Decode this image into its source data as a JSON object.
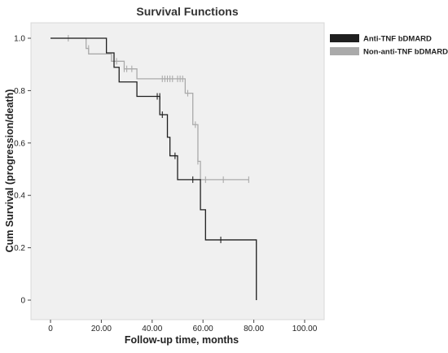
{
  "chart_data": {
    "type": "line",
    "subtype": "kaplan-meier-step",
    "title": "Survival Functions",
    "xlabel": "Follow-up time, months",
    "ylabel": "Cum Survival (progression/death)",
    "xlim": [
      0,
      100
    ],
    "ylim": [
      0,
      1.0
    ],
    "xticks": [
      0,
      20,
      40,
      60,
      80,
      100
    ],
    "xtick_labels": [
      "0",
      "20.00",
      "40.00",
      "60.00",
      "80.00",
      "100.00"
    ],
    "yticks": [
      0,
      0.2,
      0.4,
      0.6,
      0.8,
      1.0
    ],
    "ytick_labels": [
      "0",
      "0.2",
      "0.4",
      "0.6",
      "0.8",
      "1.0"
    ],
    "grid": false,
    "legend": "top-right",
    "background_color": "#f0f0f0",
    "series": [
      {
        "name": "Anti-TNF bDMARD",
        "color": "#1f1f1f",
        "steps": [
          [
            0,
            1.0
          ],
          [
            22,
            0.944
          ],
          [
            25,
            0.889
          ],
          [
            27,
            0.833
          ],
          [
            34,
            0.778
          ],
          [
            43,
            0.708
          ],
          [
            46,
            0.622
          ],
          [
            47,
            0.551
          ],
          [
            50,
            0.46
          ],
          [
            59,
            0.345
          ],
          [
            61,
            0.23
          ],
          [
            81,
            0.0
          ]
        ],
        "censored": [
          [
            42,
            0.778
          ],
          [
            43,
            0.778
          ],
          [
            44,
            0.708
          ],
          [
            49,
            0.551
          ],
          [
            56,
            0.46
          ],
          [
            67,
            0.23
          ]
        ]
      },
      {
        "name": "Non-anti-TNF bDMARD",
        "color": "#aaaaaa",
        "steps": [
          [
            0,
            1.0
          ],
          [
            14,
            0.961
          ],
          [
            15,
            0.94
          ],
          [
            24,
            0.912
          ],
          [
            29,
            0.883
          ],
          [
            34,
            0.845
          ],
          [
            53,
            0.79
          ],
          [
            56,
            0.67
          ],
          [
            58,
            0.53
          ],
          [
            59,
            0.46
          ],
          [
            78,
            0.46
          ]
        ],
        "censored": [
          [
            7,
            1.0
          ],
          [
            15,
            0.961
          ],
          [
            26,
            0.912
          ],
          [
            29,
            0.883
          ],
          [
            30,
            0.883
          ],
          [
            32,
            0.883
          ],
          [
            44,
            0.845
          ],
          [
            45,
            0.845
          ],
          [
            46,
            0.845
          ],
          [
            47,
            0.845
          ],
          [
            48,
            0.845
          ],
          [
            50,
            0.845
          ],
          [
            51,
            0.845
          ],
          [
            52,
            0.845
          ],
          [
            54,
            0.79
          ],
          [
            57,
            0.67
          ],
          [
            58,
            0.53
          ],
          [
            61,
            0.46
          ],
          [
            68,
            0.46
          ],
          [
            78,
            0.46
          ]
        ]
      }
    ]
  }
}
